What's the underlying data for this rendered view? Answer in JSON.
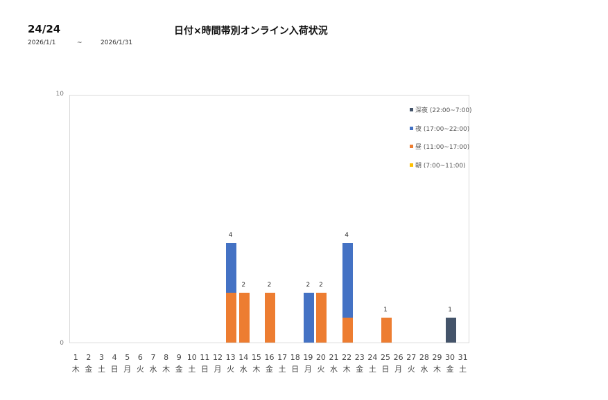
{
  "header": {
    "page_indicator": "24/24",
    "title": "日付×時間帯別オンライン入荷状況",
    "date_start": "2026/1/1",
    "date_separator": "~",
    "date_end": "2026/1/31"
  },
  "colors": {
    "late_night": "#44546a",
    "night": "#4472c4",
    "day": "#ed7d31",
    "morning": "#ffc000"
  },
  "chart_data": {
    "type": "bar",
    "stacked": true,
    "title": "日付×時間帯別オンライン入荷状況",
    "xlabel": "",
    "ylabel": "",
    "ylim": [
      0,
      10
    ],
    "yticks": [
      "0",
      "10"
    ],
    "grid": false,
    "legend_position": "right-top",
    "categories": [
      "1",
      "2",
      "3",
      "4",
      "5",
      "6",
      "7",
      "8",
      "9",
      "10",
      "11",
      "12",
      "13",
      "14",
      "15",
      "16",
      "17",
      "18",
      "19",
      "20",
      "21",
      "22",
      "23",
      "24",
      "25",
      "26",
      "27",
      "28",
      "29",
      "30",
      "31"
    ],
    "weekdays": [
      "木",
      "金",
      "土",
      "日",
      "月",
      "火",
      "水",
      "木",
      "金",
      "土",
      "日",
      "月",
      "火",
      "水",
      "木",
      "金",
      "土",
      "日",
      "月",
      "火",
      "水",
      "木",
      "金",
      "土",
      "日",
      "月",
      "火",
      "水",
      "木",
      "金",
      "土"
    ],
    "series": [
      {
        "name": "朝 (7:00~11:00)",
        "color": "#ffc000",
        "values": [
          0,
          0,
          0,
          0,
          0,
          0,
          0,
          0,
          0,
          0,
          0,
          0,
          0,
          0,
          0,
          0,
          0,
          0,
          0,
          0,
          0,
          0,
          0,
          0,
          0,
          0,
          0,
          0,
          0,
          0,
          0
        ]
      },
      {
        "name": "昼 (11:00~17:00)",
        "color": "#ed7d31",
        "values": [
          0,
          0,
          0,
          0,
          0,
          0,
          0,
          0,
          0,
          0,
          0,
          0,
          2,
          2,
          0,
          2,
          0,
          0,
          0,
          2,
          0,
          1,
          0,
          0,
          1,
          0,
          0,
          0,
          0,
          0,
          0
        ]
      },
      {
        "name": "夜 (17:00~22:00)",
        "color": "#4472c4",
        "values": [
          0,
          0,
          0,
          0,
          0,
          0,
          0,
          0,
          0,
          0,
          0,
          0,
          2,
          0,
          0,
          0,
          0,
          0,
          2,
          0,
          0,
          3,
          0,
          0,
          0,
          0,
          0,
          0,
          0,
          0,
          0
        ]
      },
      {
        "name": "深夜 (22:00~7:00)",
        "color": "#44546a",
        "values": [
          0,
          0,
          0,
          0,
          0,
          0,
          0,
          0,
          0,
          0,
          0,
          0,
          0,
          0,
          0,
          0,
          0,
          0,
          0,
          0,
          0,
          0,
          0,
          0,
          0,
          0,
          0,
          0,
          0,
          1,
          0
        ]
      }
    ],
    "totals": [
      0,
      0,
      0,
      0,
      0,
      0,
      0,
      0,
      0,
      0,
      0,
      0,
      4,
      2,
      0,
      2,
      0,
      0,
      2,
      2,
      0,
      4,
      0,
      0,
      1,
      0,
      0,
      0,
      0,
      1,
      0
    ],
    "legend": [
      "深夜 (22:00~7:00)",
      "夜 (17:00~22:00)",
      "昼 (11:00~17:00)",
      "朝 (7:00~11:00)"
    ]
  }
}
